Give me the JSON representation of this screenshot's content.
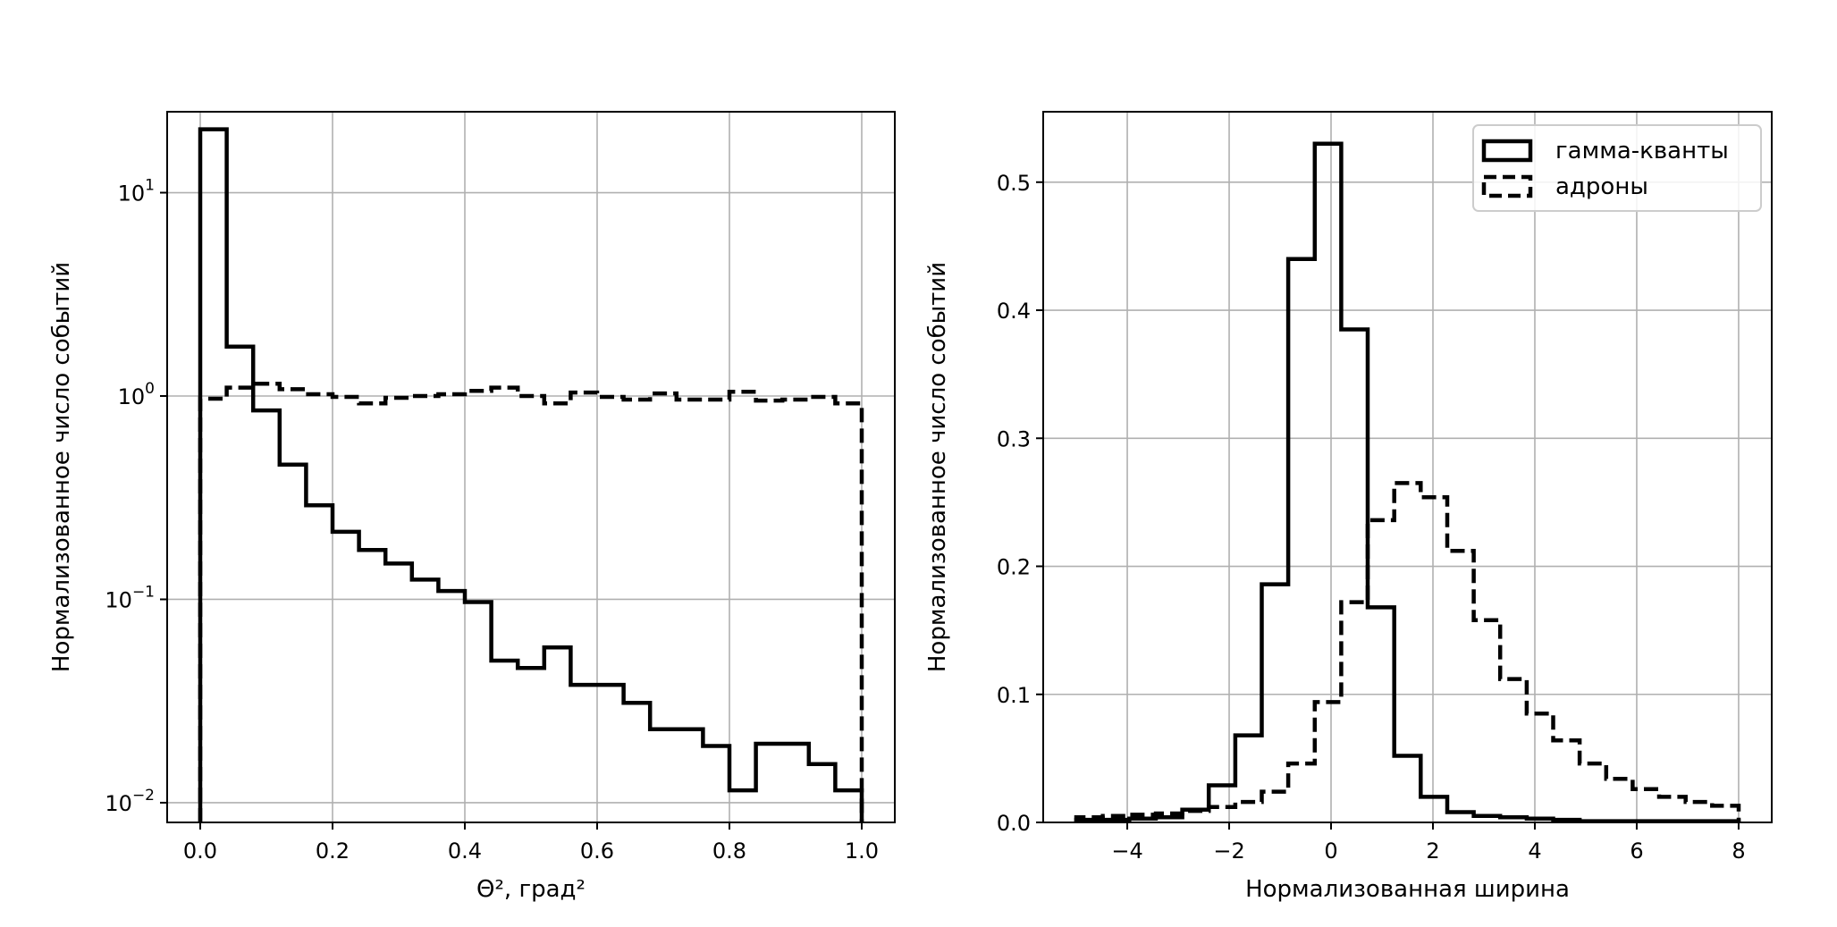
{
  "chart_data": [
    {
      "type": "histogram",
      "xlabel": "Θ², град²",
      "ylabel": "Нормализованное число событий",
      "xlim": [
        -0.05,
        1.05
      ],
      "ylim": [
        0.008,
        25
      ],
      "yscale": "log",
      "grid": true,
      "xticks": [
        0.0,
        0.2,
        0.4,
        0.6,
        0.8,
        1.0
      ],
      "xtick_labels": [
        "0.0",
        "0.2",
        "0.4",
        "0.6",
        "0.8",
        "1.0"
      ],
      "yticks": [
        0.01,
        0.1,
        1,
        10
      ],
      "ytick_labels": [
        {
          "base": "10",
          "exp": "−2"
        },
        {
          "base": "10",
          "exp": "−1"
        },
        {
          "base": "10",
          "exp": "0"
        },
        {
          "base": "10",
          "exp": "1"
        }
      ],
      "bin_edges": [
        0.0,
        0.04,
        0.08,
        0.12,
        0.16,
        0.2,
        0.24,
        0.28,
        0.32,
        0.36,
        0.4,
        0.44,
        0.48,
        0.52,
        0.56,
        0.6,
        0.64,
        0.68,
        0.72,
        0.76,
        0.8,
        0.84,
        0.88,
        0.92,
        0.96,
        1.0
      ],
      "series": [
        {
          "style": "solid",
          "values": [
            20.5,
            1.75,
            0.85,
            0.46,
            0.29,
            0.215,
            0.175,
            0.15,
            0.125,
            0.11,
            0.097,
            0.05,
            0.046,
            0.058,
            0.038,
            0.038,
            0.031,
            0.023,
            0.023,
            0.019,
            0.0115,
            0.0195,
            0.0195,
            0.0155,
            0.0115
          ]
        },
        {
          "style": "dashed",
          "values": [
            0.97,
            1.1,
            1.15,
            1.08,
            1.02,
            0.99,
            0.92,
            0.98,
            1.0,
            1.02,
            1.06,
            1.1,
            1.0,
            0.92,
            1.04,
            0.99,
            0.96,
            1.03,
            0.96,
            0.96,
            1.05,
            0.95,
            0.96,
            0.99,
            0.92
          ]
        }
      ]
    },
    {
      "type": "histogram",
      "xlabel": "Нормализованная ширина",
      "ylabel": "Нормализованное число событий",
      "xlim": [
        -5.65,
        8.65
      ],
      "ylim": [
        0,
        0.555
      ],
      "grid": true,
      "xticks": [
        -4,
        -2,
        0,
        2,
        4,
        6,
        8
      ],
      "xtick_labels": [
        "−4",
        "−2",
        "0",
        "2",
        "4",
        "6",
        "8"
      ],
      "yticks": [
        0.0,
        0.1,
        0.2,
        0.3,
        0.4,
        0.5
      ],
      "ytick_labels": [
        "0.0",
        "0.1",
        "0.2",
        "0.3",
        "0.4",
        "0.5"
      ],
      "legend": {
        "position": "upper right",
        "entries": [
          {
            "label": "гамма-кванты",
            "style": "solid"
          },
          {
            "label": "адроны",
            "style": "dashed"
          }
        ]
      },
      "bin_edges": [
        -5.0,
        -4.48,
        -3.96,
        -3.44,
        -2.92,
        -2.4,
        -1.88,
        -1.36,
        -0.84,
        -0.32,
        0.2,
        0.72,
        1.24,
        1.76,
        2.28,
        2.8,
        3.32,
        3.84,
        4.36,
        4.88,
        5.4,
        5.92,
        6.44,
        6.96,
        7.48,
        8.0
      ],
      "series": [
        {
          "style": "solid",
          "values": [
            0.002,
            0.002,
            0.003,
            0.004,
            0.01,
            0.029,
            0.068,
            0.186,
            0.44,
            0.53,
            0.385,
            0.168,
            0.052,
            0.02,
            0.008,
            0.005,
            0.004,
            0.003,
            0.002,
            0.001,
            0.001,
            0.001,
            0.001,
            0.001,
            0.001
          ]
        },
        {
          "style": "dashed",
          "values": [
            0.004,
            0.005,
            0.006,
            0.007,
            0.009,
            0.012,
            0.016,
            0.024,
            0.046,
            0.094,
            0.172,
            0.236,
            0.265,
            0.254,
            0.212,
            0.158,
            0.112,
            0.085,
            0.064,
            0.046,
            0.034,
            0.026,
            0.02,
            0.016,
            0.013
          ]
        }
      ]
    }
  ]
}
